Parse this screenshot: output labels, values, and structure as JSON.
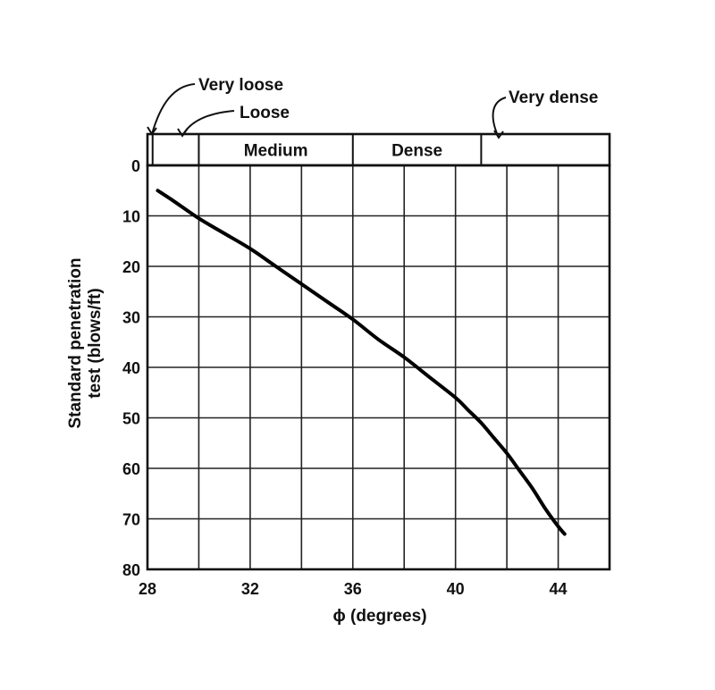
{
  "chart_data": {
    "type": "line",
    "title": "",
    "xlabel": "ϕ (degrees)",
    "ylabel_line1": "Standard penetration",
    "ylabel_line2": "test (blows/ft)",
    "xlim": [
      28,
      46
    ],
    "ylim": [
      0,
      80
    ],
    "y_inverted": true,
    "grid": true,
    "x_ticks": [
      28,
      32,
      36,
      40,
      44
    ],
    "y_ticks": [
      0,
      10,
      20,
      30,
      40,
      50,
      60,
      70,
      80
    ],
    "x_grid": [
      28,
      30,
      32,
      34,
      36,
      38,
      40,
      42,
      44,
      46
    ],
    "y_grid": [
      0,
      10,
      20,
      30,
      40,
      50,
      60,
      70,
      80
    ],
    "series": [
      {
        "x": [
          28.4,
          29.0,
          30.0,
          31.0,
          32.0,
          33.0,
          34.0,
          35.0,
          36.0,
          37.0,
          38.0,
          39.0,
          40.0,
          40.5,
          41.0,
          41.5,
          42.0,
          42.5,
          43.0,
          43.5,
          44.0,
          44.25
        ],
        "y": [
          5,
          7,
          10.5,
          13.5,
          16.5,
          20,
          23.5,
          27,
          30.5,
          34.5,
          38,
          42,
          46,
          48.5,
          51,
          54,
          57,
          60.5,
          64,
          68,
          71.5,
          73
        ]
      }
    ],
    "density_bands": [
      {
        "label": "",
        "x_start": 28.0,
        "x_end": 28.2
      },
      {
        "label": "",
        "x_start": 28.2,
        "x_end": 30.0
      },
      {
        "label": "Medium",
        "x_start": 30.0,
        "x_end": 36.0
      },
      {
        "label": "Dense",
        "x_start": 36.0,
        "x_end": 41.0
      },
      {
        "label": "",
        "x_start": 41.0,
        "x_end": 46.0
      }
    ],
    "annotations": [
      {
        "label": "Very loose",
        "points_to_x": 28.1
      },
      {
        "label": "Loose",
        "points_to_x": 29.1
      },
      {
        "label": "Very dense",
        "points_to_x": 41.8
      }
    ]
  }
}
